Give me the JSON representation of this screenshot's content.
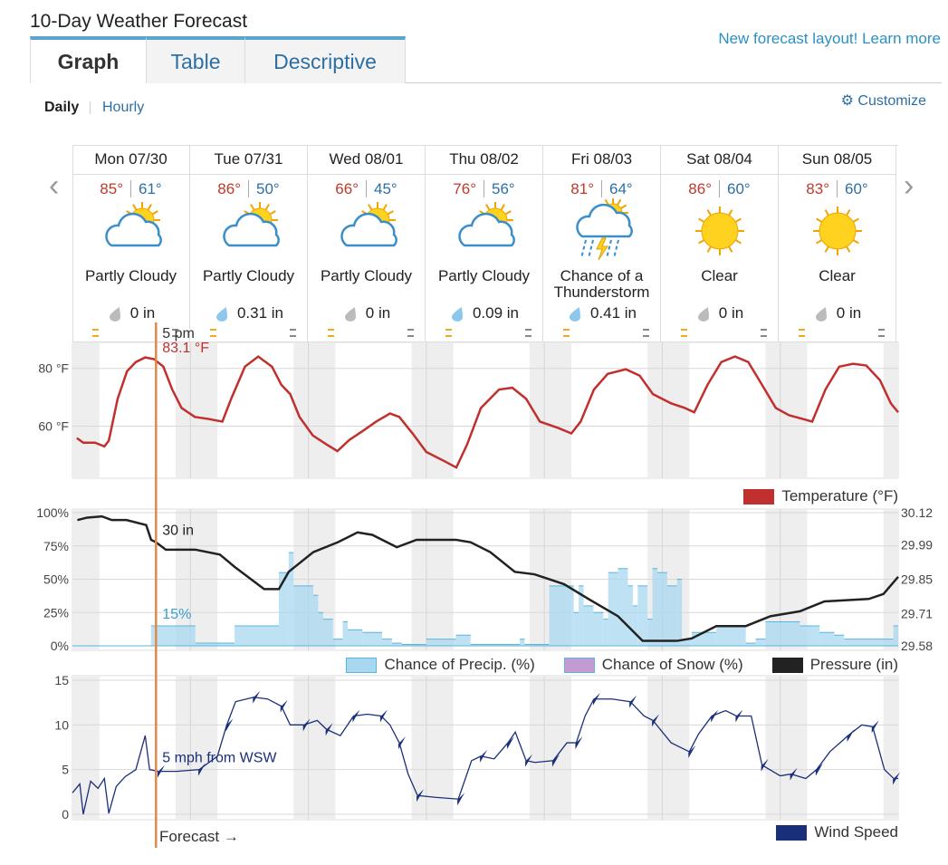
{
  "header": {
    "title": "10-Day Weather Forecast",
    "tabs": [
      "Graph",
      "Table",
      "Descriptive"
    ],
    "promo": "New forecast layout! Learn more"
  },
  "view": {
    "modes": [
      "Daily",
      "Hourly"
    ],
    "customize": "Customize"
  },
  "days": [
    {
      "date": "Mon 07/30",
      "high": "85°",
      "low": "61°",
      "condition": "Partly Cloudy",
      "precip": "0 in"
    },
    {
      "date": "Tue 07/31",
      "high": "86°",
      "low": "50°",
      "condition": "Partly Cloudy",
      "precip": "0.31 in"
    },
    {
      "date": "Wed 08/01",
      "high": "66°",
      "low": "45°",
      "condition": "Partly Cloudy",
      "precip": "0 in"
    },
    {
      "date": "Thu 08/02",
      "high": "76°",
      "low": "56°",
      "condition": "Partly Cloudy",
      "precip": "0.09 in"
    },
    {
      "date": "Fri 08/03",
      "high": "81°",
      "low": "64°",
      "condition": "Chance of a Thunderstorm",
      "precip": "0.41 in"
    },
    {
      "date": "Sat 08/04",
      "high": "86°",
      "low": "60°",
      "condition": "Clear",
      "precip": "0 in"
    },
    {
      "date": "Sun 08/05",
      "high": "83°",
      "low": "60°",
      "condition": "Clear",
      "precip": "0 in"
    }
  ],
  "now": {
    "time": "5 pm",
    "x": 17
  },
  "footer": "Forecast →",
  "chart_data": [
    {
      "type": "line",
      "xlim": [
        0,
        168
      ],
      "ylim": [
        42,
        89
      ],
      "yticks": [
        {
          "value": 60,
          "label": "60 °F"
        },
        {
          "value": 80,
          "label": "80 °F"
        }
      ],
      "grid": true,
      "annotations": [
        {
          "value": 83.1,
          "label": "83.1 °F"
        }
      ],
      "series": [
        {
          "name": "Temperature (°F)",
          "color": "#c0302e",
          "type": "line",
          "x": [
            0.9,
            2.2,
            4.6,
            6.5,
            7.4,
            9.2,
            11.1,
            12.9,
            14.8,
            16.6,
            18.5,
            20.3,
            22.2,
            24.9,
            27.7,
            30.5,
            32.3,
            35.1,
            37.8,
            40.6,
            42.5,
            44.3,
            46.2,
            48.9,
            51.7,
            53.9,
            56.3,
            59.1,
            61.8,
            64.6,
            66.5,
            69.2,
            72,
            75.7,
            78.1,
            80.3,
            83.1,
            86.8,
            89.5,
            92.3,
            95.1,
            98.8,
            101.5,
            103.4,
            106.1,
            108.9,
            112.6,
            115.4,
            118.1,
            121.8,
            124.6,
            126.5,
            129.2,
            132,
            134.8,
            137.5,
            140.3,
            143.1,
            145.8,
            148.6,
            150.5,
            153.2,
            156,
            158.8,
            161.5,
            164.3,
            166.5,
            168
          ],
          "values": [
            55.9,
            54.3,
            54.3,
            53,
            55,
            69.5,
            79,
            82.2,
            83.8,
            83.2,
            80.6,
            72.7,
            66.3,
            63.2,
            62.5,
            61.6,
            69.5,
            80.6,
            84.1,
            80.6,
            74.3,
            71.1,
            63.2,
            56.8,
            53.7,
            51.4,
            55.2,
            58.4,
            61.6,
            64.4,
            63.2,
            57.5,
            51.1,
            47.9,
            45.7,
            53.7,
            66.3,
            72.7,
            73.3,
            69.5,
            61.6,
            59.4,
            57.5,
            61.6,
            72.7,
            78.1,
            79.7,
            77.5,
            71.1,
            67.9,
            66.3,
            64.8,
            74.3,
            82.2,
            84.1,
            82.2,
            74.3,
            66.3,
            63.8,
            62.5,
            61.6,
            72.7,
            80.6,
            81.6,
            81,
            75.9,
            67.9,
            64.8
          ]
        }
      ]
    },
    {
      "type": "combo",
      "xlim": [
        0,
        168
      ],
      "ylim": [
        0,
        100
      ],
      "yticks": [
        {
          "value": 0,
          "label": "0%"
        },
        {
          "value": 25,
          "label": "25%"
        },
        {
          "value": 50,
          "label": "50%"
        },
        {
          "value": 75,
          "label": "75%"
        },
        {
          "value": 100,
          "label": "100%"
        }
      ],
      "y2lim": [
        29.58,
        30.12
      ],
      "y2ticks": [
        29.58,
        29.71,
        29.85,
        29.99,
        30.12
      ],
      "grid": true,
      "annotations": [
        {
          "value": 30,
          "label": "30 in",
          "axis": "y2"
        },
        {
          "value": 15,
          "label": "15%"
        }
      ],
      "series": [
        {
          "name": "Chance of Precip. (%)",
          "color": "#a8d8ef",
          "type": "area",
          "x": [
            16,
            25,
            33,
            42,
            44,
            45,
            47,
            49,
            50,
            51,
            53,
            55,
            56,
            59,
            63,
            65,
            67,
            72,
            78,
            81,
            89,
            91,
            92,
            97,
            102,
            103,
            104,
            106,
            108,
            109,
            111,
            113,
            114,
            115,
            117,
            118,
            119,
            121,
            123,
            124,
            126,
            131,
            137,
            139,
            141,
            148,
            152,
            155,
            157,
            167
          ],
          "values": [
            15,
            2,
            15,
            55,
            70,
            45,
            45,
            38,
            25,
            20,
            5,
            18,
            12,
            10,
            5,
            2,
            1,
            5,
            8,
            1,
            1,
            5,
            1,
            45,
            25,
            45,
            30,
            25,
            20,
            55,
            58,
            45,
            30,
            45,
            20,
            58,
            55,
            45,
            50,
            5,
            10,
            15,
            2,
            5,
            18,
            15,
            10,
            8,
            5,
            15
          ]
        },
        {
          "name": "Chance of Snow (%)",
          "color": "#c39bd3",
          "type": "area",
          "x": [
            0,
            168
          ],
          "values": [
            0,
            0
          ]
        },
        {
          "name": "Pressure (in)",
          "color": "#222222",
          "type": "line",
          "axis": "y2",
          "x": [
            1,
            3,
            6,
            8,
            11,
            15,
            16,
            17,
            19,
            25,
            30,
            33,
            39,
            42,
            44,
            49,
            54,
            58,
            61,
            66,
            70,
            78,
            81,
            85,
            90,
            94,
            100,
            105,
            111,
            116,
            123,
            126,
            131,
            137,
            142,
            148,
            153,
            162,
            165,
            168
          ],
          "values": [
            30.09,
            30.1,
            30.105,
            30.09,
            30.09,
            30.07,
            30.01,
            30,
            29.97,
            29.97,
            29.95,
            29.9,
            29.81,
            29.81,
            29.88,
            29.96,
            30,
            30.04,
            30.03,
            29.98,
            30.01,
            30.01,
            30,
            29.96,
            29.88,
            29.87,
            29.83,
            29.77,
            29.7,
            29.6,
            29.6,
            29.61,
            29.66,
            29.66,
            29.7,
            29.72,
            29.76,
            29.77,
            29.79,
            29.86
          ]
        }
      ]
    },
    {
      "type": "line",
      "xlim": [
        0,
        168
      ],
      "ylim": [
        0,
        15
      ],
      "yticks": [
        0,
        5,
        10,
        15
      ],
      "grid": true,
      "annotations": [
        {
          "value": 5,
          "label": "5 mph from WSW"
        }
      ],
      "series": [
        {
          "name": "Wind Speed",
          "color": "#1a2f7a",
          "type": "line",
          "x": [
            0,
            1.5,
            2.2,
            3.7,
            5.2,
            6.5,
            7.4,
            8.9,
            10.7,
            12.9,
            14.8,
            15.7,
            17.5,
            21.2,
            25.8,
            29.5,
            31.4,
            33.2,
            36.9,
            39.7,
            42.5,
            44.3,
            47.1,
            49.8,
            51.7,
            54.5,
            57.2,
            60,
            62.8,
            64.6,
            66.5,
            68.3,
            70.2,
            73.8,
            78.5,
            81.2,
            83.1,
            85.8,
            88.6,
            90.1,
            92.3,
            94.1,
            97.8,
            100.6,
            102.5,
            104.3,
            106.1,
            109.8,
            113.5,
            116.3,
            118.1,
            121.8,
            125.5,
            127.4,
            130.1,
            132.9,
            135.1,
            138.1,
            140.3,
            144,
            146.2,
            149.2,
            151.4,
            154.1,
            157.8,
            160.6,
            162.8,
            165.2,
            167.1,
            168
          ],
          "values": [
            2.4,
            3.4,
            0,
            3.7,
            2.9,
            4,
            0.1,
            3.1,
            4.2,
            5,
            8.8,
            5,
            4.8,
            4.8,
            5,
            6.5,
            10,
            12.6,
            13.1,
            12.9,
            12.1,
            10,
            10,
            10.5,
            9.5,
            8.8,
            11,
            11.2,
            11,
            10,
            8,
            4.5,
            2.1,
            1.9,
            1.7,
            6,
            6.5,
            6.2,
            8,
            9.2,
            6,
            5.8,
            6,
            8,
            8,
            11,
            12.9,
            12.9,
            12.6,
            11,
            10.5,
            8,
            7,
            9,
            11,
            11.6,
            11,
            11,
            5.5,
            4.3,
            4.5,
            4,
            5,
            7,
            8.8,
            10,
            9.8,
            5,
            4,
            4
          ]
        }
      ]
    }
  ]
}
